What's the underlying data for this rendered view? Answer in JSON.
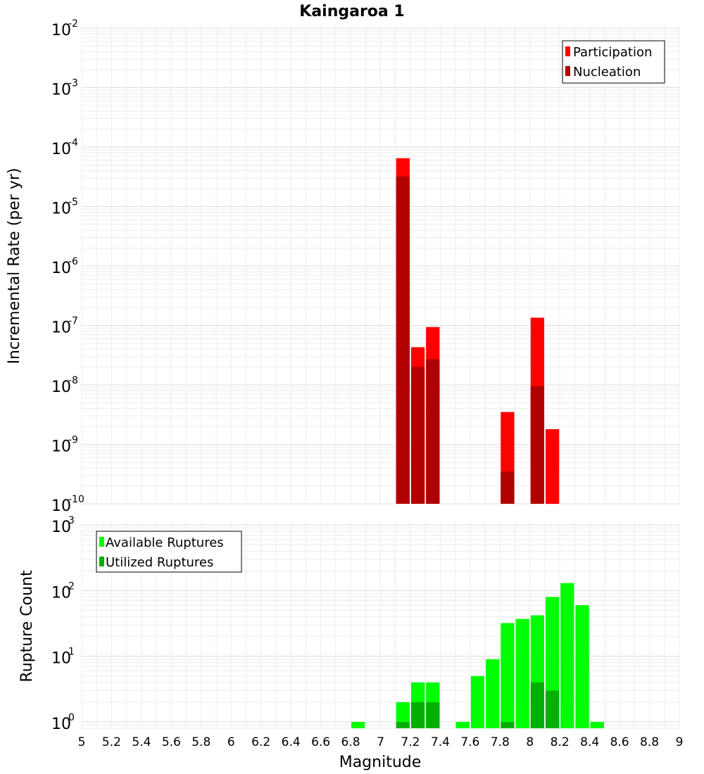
{
  "chart_data": [
    {
      "type": "bar",
      "title": "Kaingaroa 1",
      "xlabel": "Magnitude",
      "ylabel": "Incremental Rate (per yr)",
      "yscale": "log",
      "ylim": [
        1e-10,
        0.01
      ],
      "xlim": [
        5,
        9
      ],
      "bin_width": 0.1,
      "x_ticks": [
        "5",
        "5.2",
        "5.4",
        "5.6",
        "5.8",
        "6",
        "6.2",
        "6.4",
        "6.6",
        "6.8",
        "7",
        "7.2",
        "7.4",
        "7.6",
        "7.8",
        "8",
        "8.2",
        "8.4",
        "8.6",
        "8.8",
        "9"
      ],
      "y_ticks": [
        {
          "base": "10",
          "exp": "-10"
        },
        {
          "base": "10",
          "exp": "-9"
        },
        {
          "base": "10",
          "exp": "-8"
        },
        {
          "base": "10",
          "exp": "-7"
        },
        {
          "base": "10",
          "exp": "-6"
        },
        {
          "base": "10",
          "exp": "-5"
        },
        {
          "base": "10",
          "exp": "-4"
        },
        {
          "base": "10",
          "exp": "-3"
        },
        {
          "base": "10",
          "exp": "-2"
        }
      ],
      "legend": {
        "position": "top-right",
        "entries": [
          {
            "name": "Participation",
            "color": "#ff0000"
          },
          {
            "name": "Nucleation",
            "color": "#b00000"
          }
        ]
      },
      "series": [
        {
          "name": "Participation",
          "color": "#ff0000",
          "x": [
            7.15,
            7.25,
            7.35,
            7.85,
            8.05,
            8.15
          ],
          "values": [
            6.5e-05,
            4.3e-08,
            9.4e-08,
            3.5e-09,
            1.35e-07,
            1.8e-09
          ]
        },
        {
          "name": "Nucleation",
          "color": "#b00000",
          "x": [
            7.15,
            7.25,
            7.35,
            7.85,
            8.05
          ],
          "values": [
            3.2e-05,
            2e-08,
            2.7e-08,
            3.5e-10,
            9.5e-09
          ]
        }
      ],
      "grid": true
    },
    {
      "type": "bar",
      "xlabel": "Magnitude",
      "ylabel": "Rupture Count",
      "yscale": "log",
      "ylim": [
        0.8,
        1000
      ],
      "xlim": [
        5,
        9
      ],
      "bin_width": 0.1,
      "y_ticks": [
        {
          "base": "10",
          "exp": "0"
        },
        {
          "base": "10",
          "exp": "1"
        },
        {
          "base": "10",
          "exp": "2"
        },
        {
          "base": "10",
          "exp": "3"
        }
      ],
      "legend": {
        "position": "top-left",
        "entries": [
          {
            "name": "Available Ruptures",
            "color": "#00ff00"
          },
          {
            "name": "Utilized Ruptures",
            "color": "#00b000"
          }
        ]
      },
      "series": [
        {
          "name": "Available Ruptures",
          "color": "#00ff00",
          "x": [
            6.85,
            7.15,
            7.25,
            7.35,
            7.55,
            7.65,
            7.75,
            7.85,
            7.95,
            8.05,
            8.15,
            8.25,
            8.35,
            8.45
          ],
          "values": [
            1,
            2,
            4,
            4,
            1,
            5,
            9,
            32,
            37,
            42,
            80,
            130,
            60,
            1
          ]
        },
        {
          "name": "Utilized Ruptures",
          "color": "#00b000",
          "x": [
            7.15,
            7.25,
            7.35,
            7.85,
            8.05,
            8.15
          ],
          "values": [
            1,
            2,
            2,
            1,
            4,
            3
          ]
        }
      ],
      "grid": true
    }
  ]
}
